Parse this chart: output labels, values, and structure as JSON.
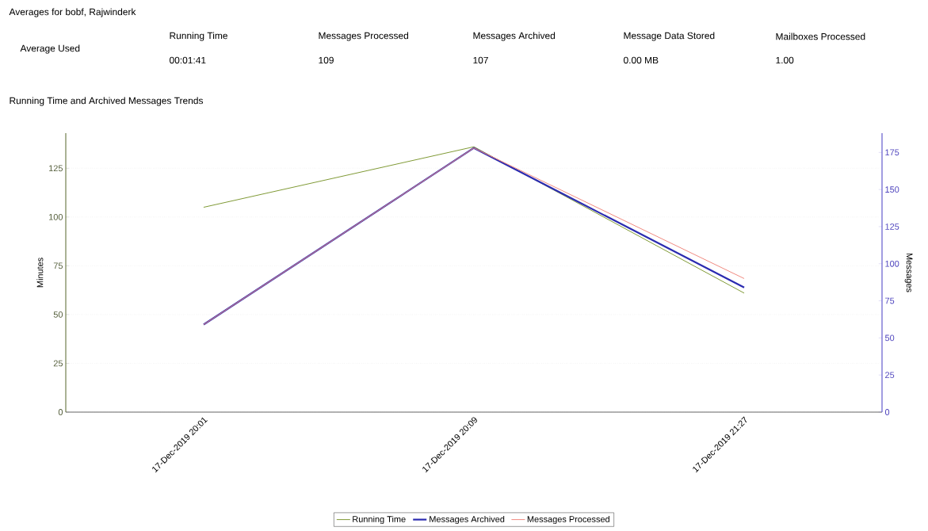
{
  "chart_data": {
    "type": "line",
    "title": "Averages for bobf, Rajwinderk",
    "subtitle": "Running Time and Archived Messages Trends",
    "annotations": [
      "Average Used",
      "Running Time",
      "Messages Processed",
      "Messages Archived",
      "Message Data Stored",
      "Mailboxes Processed",
      "00:01:41",
      "109",
      "107",
      "0.00 MB",
      "1.00"
    ],
    "categories": [
      "17-Dec-2019 20:01",
      "17-Dec-2019 20:09",
      "17-Dec-2019 21:27"
    ],
    "series": [
      {
        "name": "Running Time",
        "color": "#7f9a35",
        "values": [
          105,
          136,
          61
        ]
      },
      {
        "name": "Messages Archived",
        "color": "#2b2bb0",
        "axis": "y2",
        "values": [
          59,
          178,
          84
        ]
      },
      {
        "name": "Messages Processed",
        "color": "#f08a80",
        "axis": "y2",
        "values": [
          59,
          178,
          90
        ]
      }
    ],
    "ylabel": "Minutes",
    "y2label": "Messages",
    "ylim": [
      0,
      143
    ],
    "yticks": [
      0,
      25,
      50,
      75,
      100,
      125
    ],
    "y2lim": [
      0,
      188
    ],
    "y2ticks": [
      0,
      25,
      50,
      75,
      100,
      125,
      150,
      175
    ],
    "grid": "y",
    "legend": "bottom"
  }
}
